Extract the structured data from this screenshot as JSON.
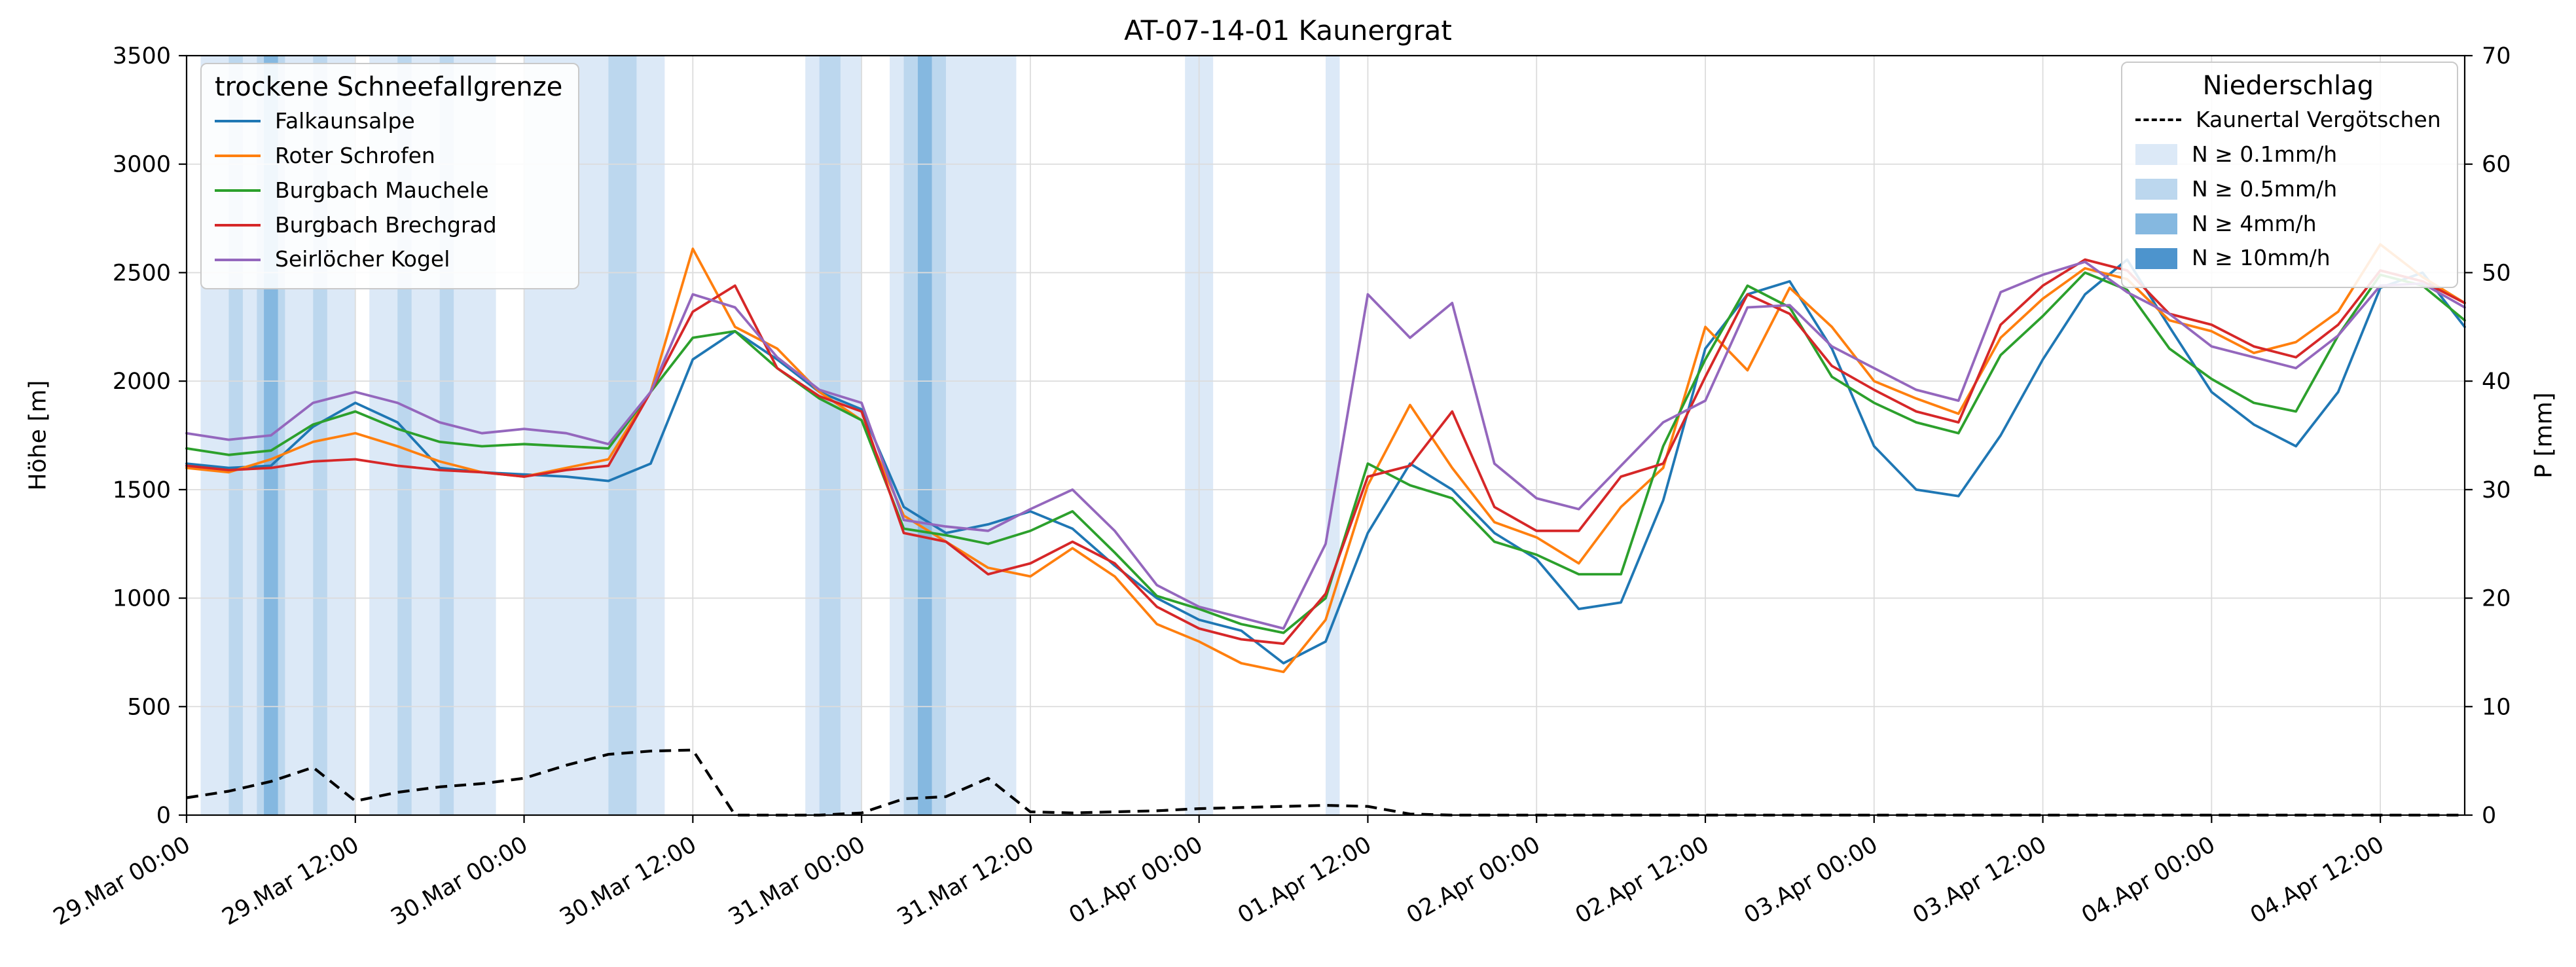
{
  "chart_data": {
    "type": "line",
    "title": "AT-07-14-01 Kaunergrat",
    "ylabel_left": "Höhe [m]",
    "ylabel_right": "P [mm]",
    "legend_snowline_title": "trockene Schneefallgrenze",
    "legend_precip_title": "Niederschlag",
    "grid": true,
    "x_unit": "hours since 29.Mar 00:00",
    "xlim": [
      0,
      162
    ],
    "ylim_left": [
      0,
      3500
    ],
    "ylim_right": [
      0,
      70
    ],
    "yticks_left": [
      0,
      500,
      1000,
      1500,
      2000,
      2500,
      3000,
      3500
    ],
    "yticks_right": [
      0,
      10,
      20,
      30,
      40,
      50,
      60,
      70
    ],
    "x_ticks": [
      {
        "h": 0,
        "label": "29.Mar 00:00"
      },
      {
        "h": 12,
        "label": "29.Mar 12:00"
      },
      {
        "h": 24,
        "label": "30.Mar 00:00"
      },
      {
        "h": 36,
        "label": "30.Mar 12:00"
      },
      {
        "h": 48,
        "label": "31.Mar 00:00"
      },
      {
        "h": 60,
        "label": "31.Mar 12:00"
      },
      {
        "h": 72,
        "label": "01.Apr 00:00"
      },
      {
        "h": 84,
        "label": "01.Apr 12:00"
      },
      {
        "h": 96,
        "label": "02.Apr 00:00"
      },
      {
        "h": 108,
        "label": "02.Apr 12:00"
      },
      {
        "h": 120,
        "label": "03.Apr 00:00"
      },
      {
        "h": 132,
        "label": "03.Apr 12:00"
      },
      {
        "h": 144,
        "label": "04.Apr 00:00"
      },
      {
        "h": 156,
        "label": "04.Apr 12:00"
      }
    ],
    "x": [
      0,
      3,
      6,
      9,
      12,
      15,
      18,
      21,
      24,
      27,
      30,
      33,
      36,
      39,
      42,
      45,
      48,
      51,
      54,
      57,
      60,
      63,
      66,
      69,
      72,
      75,
      78,
      81,
      84,
      87,
      90,
      93,
      96,
      99,
      102,
      105,
      108,
      111,
      114,
      117,
      120,
      123,
      126,
      129,
      132,
      135,
      138,
      141,
      144,
      147,
      150,
      153,
      156,
      159,
      162
    ],
    "series": [
      {
        "name": "Falkaunsalpe",
        "color": "#1f77b4",
        "values": [
          1620,
          1600,
          1610,
          1790,
          1900,
          1810,
          1600,
          1580,
          1570,
          1560,
          1540,
          1620,
          2100,
          2230,
          2100,
          1950,
          1870,
          1420,
          1300,
          1340,
          1400,
          1320,
          1150,
          1000,
          900,
          850,
          700,
          800,
          1300,
          1620,
          1500,
          1300,
          1180,
          950,
          980,
          1450,
          2150,
          2400,
          2460,
          2150,
          1700,
          1500,
          1470,
          1750,
          2100,
          2400,
          2560,
          2250,
          1950,
          1800,
          1700,
          1950,
          2430,
          2500,
          2250
        ]
      },
      {
        "name": "Roter Schrofen",
        "color": "#ff7f0e",
        "values": [
          1600,
          1580,
          1640,
          1720,
          1760,
          1700,
          1630,
          1580,
          1560,
          1600,
          1640,
          1950,
          2610,
          2250,
          2150,
          1950,
          1820,
          1380,
          1260,
          1140,
          1100,
          1230,
          1100,
          880,
          800,
          700,
          660,
          900,
          1520,
          1890,
          1600,
          1350,
          1280,
          1160,
          1420,
          1600,
          2250,
          2050,
          2430,
          2250,
          2000,
          1920,
          1850,
          2200,
          2380,
          2520,
          2470,
          2280,
          2230,
          2130,
          2180,
          2320,
          2630,
          2480,
          2360
        ]
      },
      {
        "name": "Burgbach Mauchele",
        "color": "#2ca02c",
        "values": [
          1690,
          1660,
          1680,
          1800,
          1860,
          1780,
          1720,
          1700,
          1710,
          1700,
          1690,
          1950,
          2200,
          2230,
          2060,
          1920,
          1820,
          1320,
          1290,
          1250,
          1310,
          1400,
          1210,
          1010,
          950,
          880,
          840,
          1000,
          1620,
          1520,
          1460,
          1260,
          1200,
          1110,
          1110,
          1700,
          2100,
          2440,
          2340,
          2020,
          1900,
          1810,
          1760,
          2120,
          2300,
          2500,
          2420,
          2150,
          2010,
          1900,
          1860,
          2210,
          2490,
          2440,
          2280
        ]
      },
      {
        "name": "Burgbach Brechgrad",
        "color": "#d62728",
        "values": [
          1610,
          1590,
          1600,
          1630,
          1640,
          1610,
          1590,
          1580,
          1560,
          1590,
          1610,
          1950,
          2320,
          2440,
          2060,
          1930,
          1860,
          1300,
          1260,
          1110,
          1160,
          1260,
          1160,
          960,
          860,
          810,
          790,
          1020,
          1560,
          1610,
          1860,
          1420,
          1310,
          1310,
          1560,
          1620,
          2020,
          2400,
          2310,
          2070,
          1960,
          1860,
          1810,
          2260,
          2440,
          2560,
          2510,
          2310,
          2260,
          2160,
          2110,
          2260,
          2510,
          2460,
          2360
        ]
      },
      {
        "name": "Seirlöcher Kogel",
        "color": "#9467bd",
        "values": [
          1760,
          1730,
          1750,
          1900,
          1950,
          1900,
          1810,
          1760,
          1780,
          1760,
          1710,
          1950,
          2400,
          2340,
          2110,
          1960,
          1900,
          1360,
          1330,
          1310,
          1410,
          1500,
          1310,
          1060,
          960,
          910,
          860,
          1250,
          2400,
          2200,
          2360,
          1620,
          1460,
          1410,
          1610,
          1810,
          1910,
          2340,
          2350,
          2160,
          2060,
          1960,
          1910,
          2410,
          2490,
          2550,
          2410,
          2310,
          2160,
          2110,
          2060,
          2210,
          2440,
          2450,
          2340
        ]
      }
    ],
    "precip_line": {
      "name": "Kaunertal Vergötschen",
      "color": "#000000",
      "style": "dashed",
      "axis": "right",
      "values": [
        1.6,
        2.2,
        3.1,
        4.4,
        1.3,
        2.1,
        2.6,
        2.9,
        3.4,
        4.6,
        5.6,
        5.9,
        6.0,
        0,
        0,
        0,
        0.2,
        1.5,
        1.7,
        3.4,
        0.3,
        0.2,
        0.3,
        0.4,
        0.6,
        0.7,
        0.8,
        0.9,
        0.8,
        0.1,
        0,
        0,
        0,
        0,
        0,
        0,
        0,
        0,
        0,
        0,
        0,
        0,
        0,
        0,
        0,
        0,
        0,
        0,
        0,
        0,
        0,
        0,
        0,
        0,
        0
      ]
    },
    "precip_bands": {
      "levels": [
        {
          "label": "N ≥ 0.1mm/h",
          "color": "#dce9f7"
        },
        {
          "label": "N ≥ 0.5mm/h",
          "color": "#bcd7ee"
        },
        {
          "label": "N ≥ 4mm/h",
          "color": "#85b8e0"
        },
        {
          "label": "N ≥ 10mm/h",
          "color": "#4d94cd"
        }
      ],
      "intervals": [
        [
          1,
          12,
          0
        ],
        [
          3,
          4,
          1
        ],
        [
          5,
          7,
          1
        ],
        [
          5.5,
          6.5,
          2
        ],
        [
          9,
          10,
          1
        ],
        [
          13,
          22,
          0
        ],
        [
          15,
          16,
          1
        ],
        [
          18,
          19,
          1
        ],
        [
          24,
          34,
          0
        ],
        [
          30,
          32,
          1
        ],
        [
          44,
          48,
          0
        ],
        [
          45,
          46.5,
          1
        ],
        [
          50,
          59,
          0
        ],
        [
          51,
          54,
          1
        ],
        [
          52,
          53,
          2
        ],
        [
          71,
          73,
          0
        ],
        [
          81,
          82,
          0
        ]
      ]
    }
  }
}
